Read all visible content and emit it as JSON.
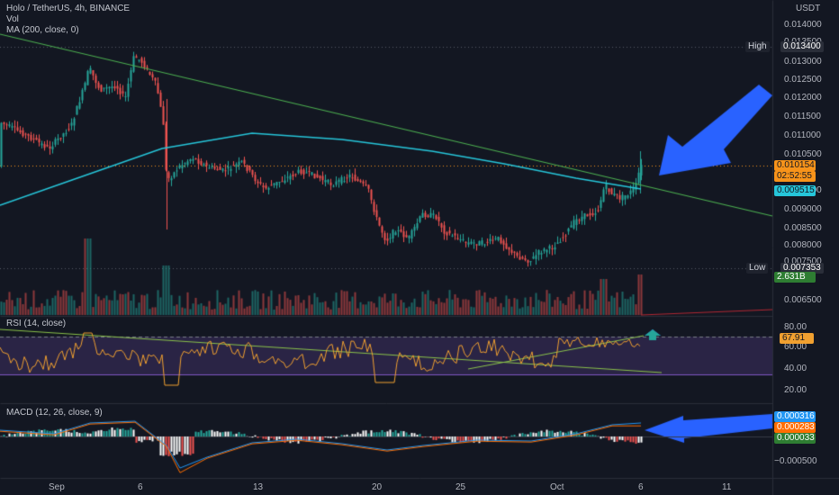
{
  "legend": {
    "symbol": "Holo / TetherUS, 4h, BINANCE",
    "vol": "Vol",
    "ma": "MA (200, close, 0)",
    "rsi": "RSI (14, close)",
    "macd": "MACD (12, 26, close, 9)"
  },
  "price_axis": {
    "currency": "USDT",
    "ticks": [
      "0.014000",
      "0.013500",
      "0.013000",
      "0.012500",
      "0.012000",
      "0.011500",
      "0.011000",
      "0.010500",
      "0.009500",
      "0.009000",
      "0.008500",
      "0.008000",
      "0.007500",
      "0.006500"
    ]
  },
  "markers": {
    "high_label": "High",
    "high_value": "0.013400",
    "low_label": "Low",
    "low_value": "0.007353",
    "last_price": "0.010154",
    "countdown": "02:52:55",
    "ma_value": "0.009515",
    "volume": "2.631B"
  },
  "rsi_axis": {
    "ticks": [
      "80.00",
      "60.00",
      "40.00",
      "20.00"
    ],
    "value": "67.91"
  },
  "macd_axis": {
    "tick": "−0.000500",
    "macd": "0.000316",
    "signal": "0.000283",
    "hist": "0.000033"
  },
  "time_axis": {
    "labels": [
      "Sep",
      "6",
      "13",
      "20",
      "25",
      "Oct",
      "6",
      "11"
    ]
  },
  "colors": {
    "background": "#131722",
    "up": "#26a69a",
    "down": "#ef5350",
    "ma": "#26c6da",
    "trendline": "#4caf50",
    "arrow": "#2962ff",
    "rsi_line": "#f0a030",
    "rsi_band": "#7e57c2",
    "macd_line": "#2196f3",
    "signal_line": "#ff6d00"
  }
}
